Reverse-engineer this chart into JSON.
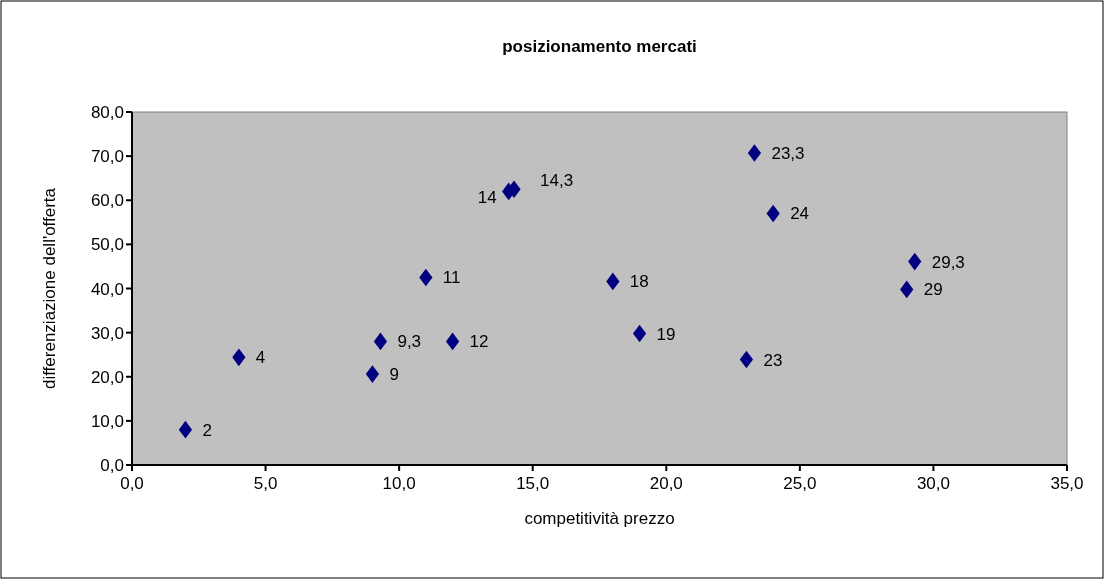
{
  "chart_data": {
    "type": "scatter",
    "title": "posizionamento mercati",
    "xlabel": "competitività prezzo",
    "ylabel": "differenziazione dell'offerta",
    "x": [
      2,
      4,
      9,
      9.3,
      11,
      12,
      14.1,
      14.3,
      18,
      19,
      23,
      23.3,
      24,
      29,
      29.3
    ],
    "series": [
      {
        "color": "#000080",
        "values": [
          8,
          24.4,
          20.6,
          28,
          42.5,
          28,
          62,
          62.5,
          41.6,
          29.8,
          23.9,
          70.7,
          57,
          39.8,
          46.1
        ]
      }
    ],
    "annotations": [
      {
        "text": "2",
        "x": 2,
        "y": 8
      },
      {
        "text": "4",
        "x": 4,
        "y": 24.4
      },
      {
        "text": "9",
        "x": 9,
        "y": 20.6
      },
      {
        "text": "9,3",
        "x": 9.3,
        "y": 28
      },
      {
        "text": "11",
        "x": 11,
        "y": 42.5
      },
      {
        "text": "12",
        "x": 12,
        "y": 28
      },
      {
        "text": "14",
        "x": 14.1,
        "y": 62
      },
      {
        "text": "14,3",
        "x": 14.3,
        "y": 62.5
      },
      {
        "text": "18",
        "x": 18,
        "y": 41.6
      },
      {
        "text": "19",
        "x": 19,
        "y": 29.8
      },
      {
        "text": "23",
        "x": 23,
        "y": 23.9
      },
      {
        "text": "23,3",
        "x": 23.3,
        "y": 70.7
      },
      {
        "text": "24",
        "x": 24,
        "y": 57
      },
      {
        "text": "29",
        "x": 29,
        "y": 39.8
      },
      {
        "text": "29,3",
        "x": 29.3,
        "y": 46.1
      }
    ],
    "marker": "diamond",
    "xlim": [
      0,
      35
    ],
    "xticks": [
      {
        "value": 0,
        "label": "0,0"
      },
      {
        "value": 5,
        "label": "5,0"
      },
      {
        "value": 10,
        "label": "10,0"
      },
      {
        "value": 15,
        "label": "15,0"
      },
      {
        "value": 20,
        "label": "20,0"
      },
      {
        "value": 25,
        "label": "25,0"
      },
      {
        "value": 30,
        "label": "30,0"
      },
      {
        "value": 35,
        "label": "35,0"
      }
    ],
    "ylim": [
      0,
      80
    ],
    "yticks": [
      {
        "value": 0,
        "label": "0,0"
      },
      {
        "value": 10,
        "label": "10,0"
      },
      {
        "value": 20,
        "label": "20,0"
      },
      {
        "value": 30,
        "label": "30,0"
      },
      {
        "value": 40,
        "label": "40,0"
      },
      {
        "value": 50,
        "label": "50,0"
      },
      {
        "value": 60,
        "label": "60,0"
      },
      {
        "value": 70,
        "label": "70,0"
      },
      {
        "value": 80,
        "label": "80,0"
      }
    ],
    "grid": false
  }
}
